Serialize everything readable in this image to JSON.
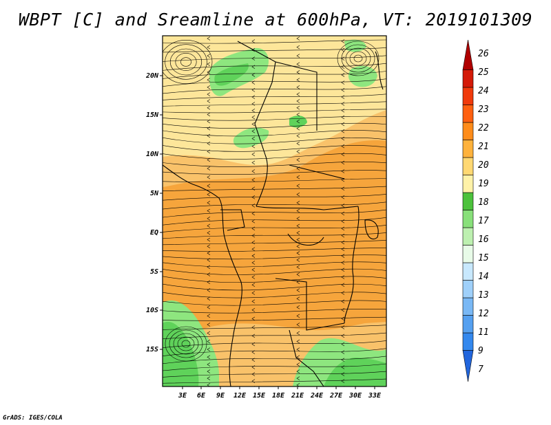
{
  "title": "WBPT [C] and Sreamline at 600hPa, VT: 2019101309",
  "credit": "GrADS: IGES/COLA",
  "map": {
    "lat_labels": [
      "20N",
      "15N",
      "10N",
      "5N",
      "EQ",
      "5S",
      "10S",
      "15S"
    ],
    "lon_labels": [
      "3E",
      "6E",
      "9E",
      "12E",
      "15E",
      "18E",
      "21E",
      "24E",
      "27E",
      "30E",
      "33E"
    ]
  },
  "colorbar": {
    "labels": [
      "7",
      "9",
      "11",
      "12",
      "13",
      "14",
      "15",
      "16",
      "17",
      "18",
      "19",
      "20",
      "21",
      "22",
      "23",
      "24",
      "25",
      "26"
    ],
    "colors": [
      "#2266dd",
      "#3388ee",
      "#55a0f0",
      "#79b8f5",
      "#9fd0fa",
      "#c8e8fd",
      "#e8fbe8",
      "#bdf0b0",
      "#88e07a",
      "#4cc23c",
      "#fff2a8",
      "#ffd872",
      "#ffb23c",
      "#ff8c1a",
      "#ff6010",
      "#f03a0c",
      "#d41a08",
      "#b00000"
    ]
  },
  "legend_colors": {
    "green_bright": "#5fd25a",
    "green_light": "#8ee67f",
    "yellow": "#fde69a",
    "orange_light": "#f8be5a",
    "orange": "#f4a038"
  }
}
